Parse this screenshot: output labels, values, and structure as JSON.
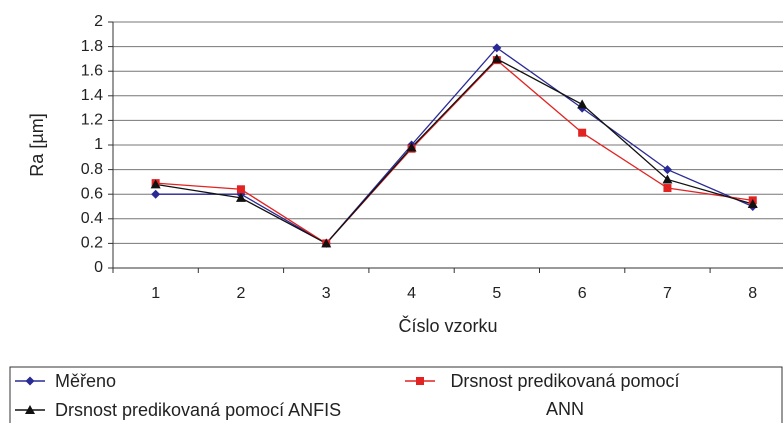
{
  "chart_data": {
    "type": "line",
    "xlabel": "Číslo vzorku",
    "ylabel": "Ra [µm]",
    "categories": [
      "1",
      "2",
      "3",
      "4",
      "5",
      "6",
      "7",
      "8"
    ],
    "series": [
      {
        "name": "Měřeno",
        "color": "#2a2a96",
        "marker": "diamond",
        "values": [
          0.6,
          0.6,
          0.2,
          1.0,
          1.79,
          1.3,
          0.8,
          0.5
        ]
      },
      {
        "name": "Drsnost predikovaná pomocí ANN",
        "color": "#e32222",
        "marker": "square",
        "values": [
          0.69,
          0.64,
          0.2,
          0.97,
          1.69,
          1.1,
          0.65,
          0.55
        ]
      },
      {
        "name": "Drsnost predikovaná pomocí ANFIS",
        "color": "#111111",
        "marker": "triangle",
        "values": [
          0.68,
          0.57,
          0.2,
          0.98,
          1.7,
          1.33,
          0.72,
          0.52
        ]
      }
    ],
    "ylim": [
      0,
      2
    ],
    "yticks": [
      0,
      0.2,
      0.4,
      0.6,
      0.8,
      1,
      1.2,
      1.4,
      1.6,
      1.8,
      2
    ],
    "grid": true
  }
}
